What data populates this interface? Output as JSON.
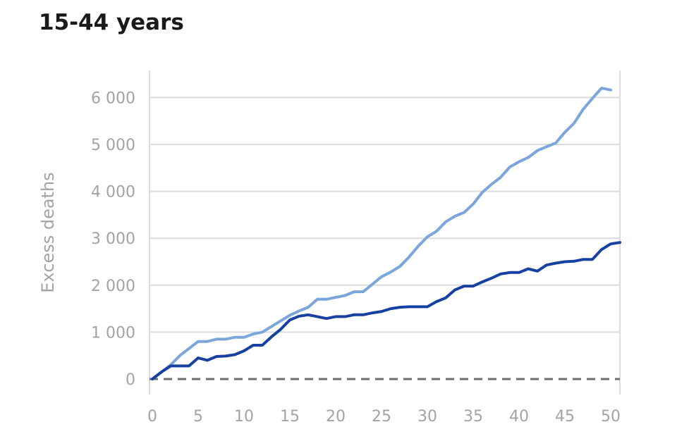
{
  "chart_data": {
    "type": "line",
    "title": "15-44 years",
    "xlabel": "",
    "ylabel": "Excess deaths",
    "xlim": [
      0,
      51
    ],
    "ylim": [
      -200,
      6600
    ],
    "x_ticks": [
      0,
      5,
      10,
      15,
      20,
      25,
      30,
      35,
      40,
      45,
      50
    ],
    "x_tick_labels": [
      "0",
      "5",
      "10",
      "15",
      "20",
      "25",
      "30",
      "35",
      "40",
      "45",
      "50"
    ],
    "y_ticks": [
      0,
      1000,
      2000,
      3000,
      4000,
      5000,
      6000
    ],
    "y_tick_labels": [
      "0",
      "1 000",
      "2 000",
      "3 000",
      "4 000",
      "5 000",
      "6 000"
    ],
    "grid": true,
    "zero_line": "dashed",
    "legend": "none",
    "series": [
      {
        "color": "#7ba6dc",
        "x": [
          0,
          1,
          2,
          3,
          4,
          5,
          6,
          7,
          8,
          9,
          10,
          11,
          12,
          13,
          14,
          15,
          16,
          17,
          18,
          19,
          20,
          21,
          22,
          23,
          24,
          25,
          26,
          27,
          28,
          29,
          30,
          31,
          32,
          33,
          34,
          35,
          36,
          37,
          38,
          39,
          40,
          41,
          42,
          43,
          44,
          45,
          46,
          47,
          48,
          49,
          50
        ],
        "values": [
          0,
          150,
          300,
          500,
          650,
          800,
          800,
          850,
          850,
          890,
          890,
          960,
          1000,
          1120,
          1240,
          1360,
          1450,
          1530,
          1700,
          1700,
          1740,
          1780,
          1860,
          1860,
          2020,
          2180,
          2280,
          2400,
          2600,
          2830,
          3030,
          3150,
          3350,
          3470,
          3550,
          3730,
          3980,
          4150,
          4300,
          4520,
          4630,
          4720,
          4870,
          4950,
          5030,
          5260,
          5450,
          5750,
          5980,
          6200,
          6160
        ]
      },
      {
        "color": "#1741a0",
        "x": [
          0,
          1,
          2,
          3,
          4,
          5,
          6,
          7,
          8,
          9,
          10,
          11,
          12,
          13,
          14,
          15,
          16,
          17,
          18,
          19,
          20,
          21,
          22,
          23,
          24,
          25,
          26,
          27,
          28,
          29,
          30,
          31,
          32,
          33,
          34,
          35,
          36,
          37,
          38,
          39,
          40,
          41,
          42,
          43,
          44,
          45,
          46,
          47,
          48,
          49,
          50,
          51
        ],
        "values": [
          0,
          150,
          280,
          280,
          280,
          450,
          400,
          480,
          490,
          520,
          600,
          720,
          720,
          900,
          1060,
          1260,
          1340,
          1370,
          1330,
          1290,
          1330,
          1330,
          1370,
          1370,
          1410,
          1440,
          1500,
          1530,
          1540,
          1540,
          1540,
          1650,
          1730,
          1900,
          1980,
          1980,
          2070,
          2150,
          2240,
          2270,
          2270,
          2350,
          2300,
          2430,
          2470,
          2500,
          2510,
          2550,
          2550,
          2760,
          2880,
          2910
        ]
      }
    ]
  }
}
